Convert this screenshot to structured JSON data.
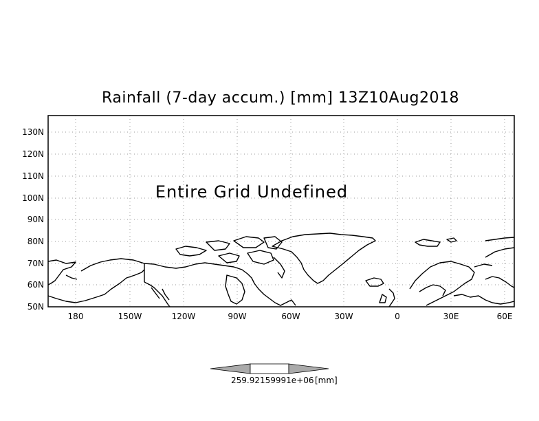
{
  "title": "Rainfall (7-day accum.) [mm] 13Z10Aug2018",
  "message": "Entire Grid Undefined",
  "lat_labels": [
    "130N",
    "120N",
    "110N",
    "100N",
    "90N",
    "80N",
    "70N",
    "60N",
    "50N"
  ],
  "lon_labels": [
    "180",
    "150W",
    "120W",
    "90W",
    "60W",
    "30W",
    "0",
    "30E",
    "60E"
  ],
  "colorbar": {
    "label_left": "259.92",
    "label_right": "159991e+06",
    "unit": "[mm]"
  }
}
